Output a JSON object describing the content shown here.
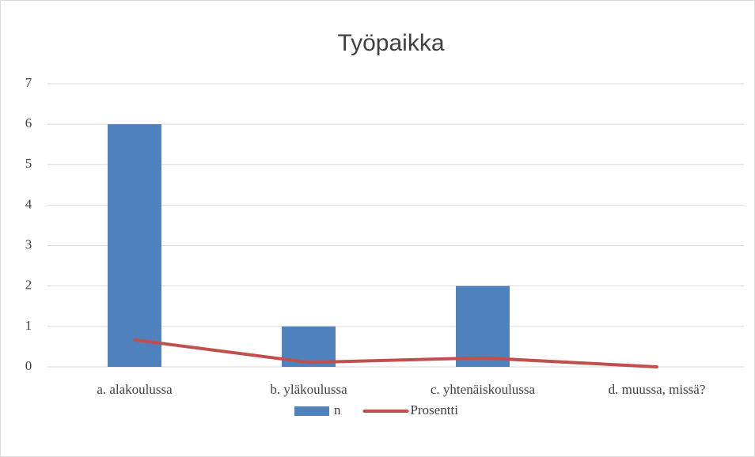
{
  "chart_data": {
    "type": "bar",
    "title": "Työpaikka",
    "categories": [
      "a. alakoulussa",
      "b. yläkoulussa",
      "c. yhtenäiskoulussa",
      "d. muussa, missä?"
    ],
    "series": [
      {
        "name": "n",
        "type": "bar",
        "color": "#4f81bd",
        "values": [
          6,
          1,
          2,
          0
        ]
      },
      {
        "name": "Prosentti",
        "type": "line",
        "color": "#c0504d",
        "values": [
          0.667,
          0.111,
          0.222,
          0
        ]
      }
    ],
    "ylim": [
      0,
      7
    ],
    "yticks": [
      0,
      1,
      2,
      3,
      4,
      5,
      6,
      7
    ],
    "grid": true,
    "legend": "bottom"
  }
}
